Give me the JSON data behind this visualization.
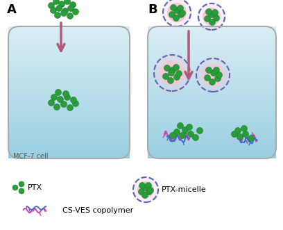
{
  "ptx_color": "#2a9d3a",
  "ptx_edge_color": "#1a7a2a",
  "arrow_color": "#b05878",
  "cell_bg_top": "#daeef5",
  "cell_bg_bottom": "#9acfe0",
  "cell_border_color": "#aaaaaa",
  "micelle_outer_color": "#5566bb",
  "micelle_inner_color": "#f0c8d8",
  "polymer_color_pink": "#cc44aa",
  "polymer_color_blue": "#4466cc",
  "label_A": "A",
  "label_B": "B",
  "cell_label": "MCF-7 cell",
  "legend_ptx": "PTX",
  "legend_micelle": "PTX-micelle",
  "legend_polymer": "CS-VES copolymer",
  "bg_color": "#ffffff",
  "text_color": "#333333"
}
